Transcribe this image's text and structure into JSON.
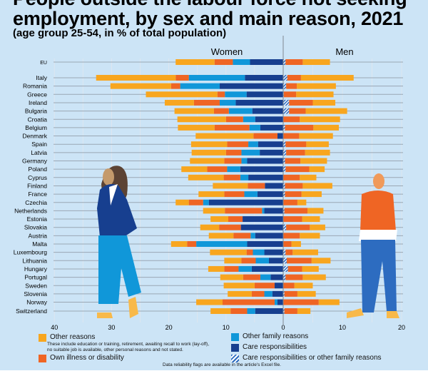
{
  "title_line1": "People outside the labour force not seeking",
  "title_line2": "employment, by sex and main reason, 2021",
  "subtitle": "(age group 25-54, in % of total population)",
  "footnote": "Data reliability flags are available in the article's Excel file.",
  "colors": {
    "other": "#f8a61f",
    "illness": "#ef6524",
    "other_family": "#1097d9",
    "care": "#173f8f",
    "hatched": "#2d6cc0",
    "background": "#cce4f6"
  },
  "legend": {
    "other": "Other reasons",
    "other_note_1": "These include education or training, retirement, awaiting recall to work (lay-off),",
    "other_note_2": "no suitable job is available, other personal reasons and not stated.",
    "illness": "Own illness or disability",
    "other_family": "Other family reasons",
    "care": "Care responsibilities",
    "hatched": "Care responsibilities or other family reasons"
  },
  "chart_data": {
    "type": "bar",
    "orientation": "horizontal-diverging-stacked",
    "panels": {
      "left": "Women",
      "right": "Men"
    },
    "x_ticks_left": [
      "40",
      "30",
      "20",
      "10",
      "0"
    ],
    "x_ticks_right": [
      "10",
      "20"
    ],
    "xlim_left": [
      0,
      40
    ],
    "xlim_right": [
      0,
      20
    ],
    "grid": true,
    "women_segments_order": [
      "care",
      "other_family",
      "illness",
      "other"
    ],
    "men_segments_order": [
      "hatched",
      "illness",
      "other"
    ],
    "rows": [
      {
        "country": "EU",
        "women": [
          5.8,
          3.0,
          3.2,
          6.8
        ],
        "men": [
          0.4,
          2.9,
          4.6
        ]
      },
      {
        "country": "Italy",
        "women": [
          6.7,
          9.8,
          2.3,
          13.9
        ],
        "men": [
          0.7,
          2.3,
          8.9
        ]
      },
      {
        "country": "Romania",
        "women": [
          11.1,
          6.9,
          1.6,
          10.6
        ],
        "men": [
          0.5,
          1.8,
          6.6
        ]
      },
      {
        "country": "Greece",
        "women": [
          6.4,
          3.8,
          1.3,
          12.5
        ],
        "men": [
          0.1,
          2.1,
          6.3
        ]
      },
      {
        "country": "Ireland",
        "women": [
          8.3,
          2.8,
          4.5,
          5.1
        ],
        "men": [
          1.0,
          4.0,
          3.8
        ]
      },
      {
        "country": "Bulgaria",
        "women": [
          5.4,
          4.1,
          2.6,
          6.9
        ],
        "men": [
          1.0,
          2.8,
          7.0
        ]
      },
      {
        "country": "Croatia",
        "women": [
          4.9,
          2.1,
          3.0,
          8.5
        ],
        "men": [
          0,
          2.8,
          6.8
        ]
      },
      {
        "country": "Belgium",
        "women": [
          4.0,
          1.9,
          6.1,
          6.4
        ],
        "men": [
          0.3,
          4.8,
          4.3
        ]
      },
      {
        "country": "Denmark",
        "women": [
          1.0,
          0,
          4.2,
          10.1
        ],
        "men": [
          0,
          2.7,
          5.7
        ]
      },
      {
        "country": "Spain",
        "women": [
          4.4,
          1.7,
          3.7,
          6.3
        ],
        "men": [
          0.4,
          3.5,
          3.8
        ]
      },
      {
        "country": "Latvia",
        "women": [
          4.1,
          3.2,
          2.7,
          6.0
        ],
        "men": [
          0.5,
          3.2,
          4.2
        ]
      },
      {
        "country": "Germany",
        "women": [
          6.3,
          1.0,
          3.0,
          6.0
        ],
        "men": [
          0.3,
          2.6,
          4.5
        ]
      },
      {
        "country": "Poland",
        "women": [
          7.5,
          2.3,
          3.5,
          4.5
        ],
        "men": [
          0.4,
          4.0,
          2.6
        ]
      },
      {
        "country": "Cyprus",
        "women": [
          6.1,
          1.4,
          2.9,
          6.2
        ],
        "men": [
          0,
          2.8,
          2.8
        ]
      },
      {
        "country": "Finland",
        "women": [
          3.2,
          0,
          3.0,
          6.1
        ],
        "men": [
          0.3,
          3.0,
          5.0
        ]
      },
      {
        "country": "France",
        "women": [
          4.5,
          2.3,
          3.5,
          4.5
        ],
        "men": [
          0.3,
          2.8,
          3.4
        ]
      },
      {
        "country": "Czechia",
        "women": [
          13.0,
          1.0,
          2.5,
          2.3
        ],
        "men": [
          0,
          2.4,
          1.5
        ]
      },
      {
        "country": "Netherlands",
        "women": [
          3.3,
          0.4,
          6.5,
          3.8
        ],
        "men": [
          0.2,
          3.9,
          2.7
        ]
      },
      {
        "country": "Estonia",
        "women": [
          7.1,
          0,
          2.5,
          3.1
        ],
        "men": [
          0,
          3.2,
          3.0
        ]
      },
      {
        "country": "Slovakia",
        "women": [
          7.4,
          0,
          3.8,
          3.3
        ],
        "men": [
          0.5,
          4.0,
          2.6
        ]
      },
      {
        "country": "Austria",
        "women": [
          4.9,
          0.8,
          3.0,
          4.3
        ],
        "men": [
          0,
          2.8,
          3.4
        ]
      },
      {
        "country": "Malta",
        "women": [
          6.3,
          8.9,
          1.6,
          2.8
        ],
        "men": [
          0,
          1.4,
          1.6
        ]
      },
      {
        "country": "Luxembourg",
        "women": [
          3.3,
          2.0,
          1.1,
          6.4
        ],
        "men": [
          0.4,
          1.2,
          4.3
        ]
      },
      {
        "country": "Lithuania",
        "women": [
          2.5,
          2.3,
          2.5,
          3.0
        ],
        "men": [
          0.6,
          4.2,
          3.2
        ]
      },
      {
        "country": "Hungary",
        "women": [
          5.5,
          2.3,
          2.5,
          2.8
        ],
        "men": [
          0.8,
          2.4,
          2.8
        ]
      },
      {
        "country": "Portugal",
        "women": [
          2.2,
          1.8,
          3.0,
          4.0
        ],
        "men": [
          0.4,
          2.9,
          3.9
        ]
      },
      {
        "country": "Sweden",
        "women": [
          1.5,
          0,
          3.5,
          5.4
        ],
        "men": [
          0,
          1.9,
          3.1
        ]
      },
      {
        "country": "Slovenia",
        "women": [
          1.9,
          1.4,
          2.2,
          4.2
        ],
        "men": [
          0.2,
          2.2,
          3.1
        ]
      },
      {
        "country": "Norway",
        "women": [
          1.0,
          0.5,
          9.1,
          4.6
        ],
        "men": [
          0,
          6.0,
          3.5
        ]
      },
      {
        "country": "Switzerland",
        "women": [
          4.9,
          1.4,
          2.9,
          3.5
        ],
        "men": [
          0.2,
          2.2,
          2.2
        ]
      }
    ]
  }
}
